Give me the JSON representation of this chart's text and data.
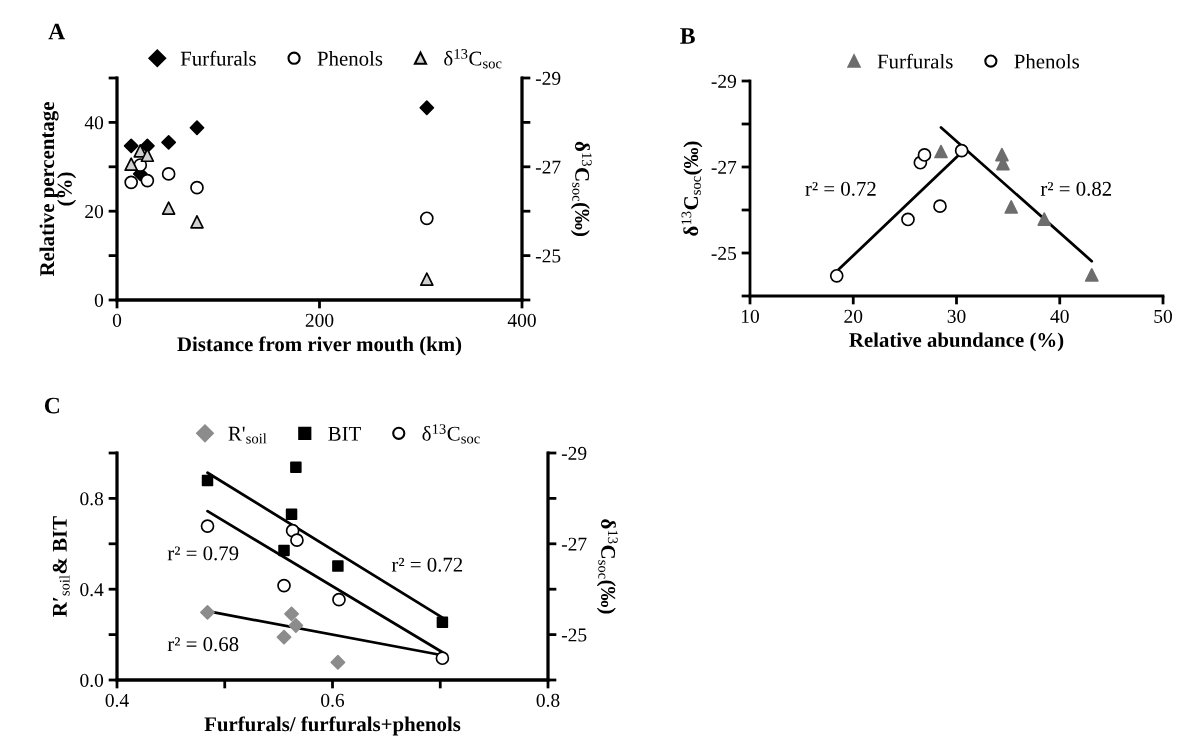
{
  "chart_data": [
    {
      "type": "scatter",
      "title": "A",
      "xlabel": "Distance from river mouth (km)",
      "ylabel": "Relative percentage\n(%)",
      "y2label": "δ$^{13}$C$_{soc}$(‰)",
      "xlim": [
        0,
        400
      ],
      "xticks": [
        0,
        200,
        400
      ],
      "ylim": [
        0,
        50
      ],
      "yticks": [
        0,
        {
          "value": 10,
          "label": null
        },
        20,
        {
          "value": 30,
          "label": null
        },
        40,
        {
          "value": 50,
          "label": null
        }
      ],
      "y2lim": [
        -24,
        -29
      ],
      "y2ticks": [
        {
          "value": -24,
          "label": null
        },
        -25,
        {
          "value": -26,
          "label": null
        },
        -27,
        {
          "value": -28,
          "label": null
        },
        -29
      ],
      "legend": "top",
      "grid": false,
      "series": [
        {
          "name": "Furfurals",
          "color": "#000000",
          "marker": "diamond",
          "x": [
            14,
            23,
            30,
            51,
            79,
            306
          ],
          "values": [
            34.7,
            28.4,
            34.7,
            35.5,
            38.8,
            43.3
          ]
        },
        {
          "name": "Phenols",
          "color": "#ffffff",
          "marker": "circle",
          "x": [
            14,
            23,
            30,
            51,
            79,
            306
          ],
          "values": [
            26.5,
            30.4,
            26.9,
            28.4,
            25.3,
            18.4
          ]
        },
        {
          "name": "δ$^{13}$C$_{soc}$",
          "color": "#d0d0d0",
          "marker": "triangle",
          "axis": "y2",
          "x": [
            14,
            23,
            30,
            51,
            79,
            306
          ],
          "values": [
            -27.06,
            -27.36,
            -27.26,
            -26.07,
            -25.76,
            -24.47
          ]
        }
      ]
    },
    {
      "type": "scatter",
      "title": "B",
      "xlabel": "Relative abundance (%)",
      "ylabel": "δ$^{13}$C$_{soc}$(‰)",
      "xlim": [
        10,
        50
      ],
      "xticks": [
        10,
        20,
        30,
        40,
        50
      ],
      "ylim": [
        -24,
        -29
      ],
      "yticks": [
        {
          "value": -24,
          "label": null
        },
        -25,
        {
          "value": -26,
          "label": null
        },
        -27,
        {
          "value": -28,
          "label": null
        },
        -29
      ],
      "legend": "top",
      "grid": false,
      "annotations": [
        "r² = 0.72",
        "r² = 0.82"
      ],
      "series": [
        {
          "name": "Furfurals",
          "color": "#6d6d6d",
          "marker": "triangle",
          "x": [
            28.5,
            34.4,
            34.5,
            35.3,
            38.5,
            43.1
          ],
          "values": [
            -27.36,
            -27.29,
            -27.08,
            -26.07,
            -25.79,
            -24.49
          ]
        },
        {
          "name": "Phenols",
          "color": "#ffffff",
          "marker": "circle",
          "x": [
            18.4,
            25.3,
            26.5,
            26.9,
            28.4,
            30.5
          ],
          "values": [
            -24.47,
            -25.78,
            -27.1,
            -27.28,
            -26.09,
            -27.38
          ]
        },
        {
          "type": "line",
          "color": "#000000",
          "marker": "none",
          "x": [
            18.6,
            30.4
          ],
          "values": [
            -24.62,
            -27.32
          ]
        },
        {
          "type": "line",
          "color": "#000000",
          "marker": "none",
          "x": [
            28.5,
            43.1
          ],
          "values": [
            -27.92,
            -24.81
          ]
        }
      ]
    },
    {
      "type": "scatter",
      "title": "C",
      "xlabel": "Furfurals/ furfurals+phenols",
      "ylabel": "R′$_{soil}$& BIT",
      "y2label": "δ$^{13}$C$_{soc}$(‰)",
      "xlim": [
        0.4,
        0.8
      ],
      "xticks": [
        0.4,
        {
          "value": 0.5,
          "label": null
        },
        0.6,
        {
          "value": 0.7,
          "label": null
        },
        0.8
      ],
      "ylim": [
        0,
        1
      ],
      "yticks": [
        {
          "value": 0,
          "label": "0.0"
        },
        {
          "value": 0.2,
          "label": null
        },
        0.4,
        {
          "value": 0.6,
          "label": null
        },
        0.8,
        {
          "value": 1,
          "label": null
        }
      ],
      "y2lim": [
        -24,
        -29
      ],
      "y2ticks": [
        {
          "value": -24,
          "label": null
        },
        -25,
        {
          "value": -26,
          "label": null
        },
        -27,
        {
          "value": -28,
          "label": null
        },
        -29
      ],
      "legend": "top",
      "grid": false,
      "annotations": [
        "r² = 0.79",
        "r² = 0.72",
        "r² = 0.68"
      ],
      "series": [
        {
          "name": "R'$_{soil}$",
          "color": "#8c8c8c",
          "marker": "diamond",
          "x": [
            0.484,
            0.562,
            0.566,
            0.555,
            0.605
          ],
          "values": [
            0.298,
            0.291,
            0.24,
            0.189,
            0.078
          ]
        },
        {
          "name": "BIT",
          "color": "#000000",
          "marker": "square",
          "x": [
            0.484,
            0.566,
            0.562,
            0.555,
            0.605,
            0.702
          ],
          "values": [
            0.879,
            0.937,
            0.73,
            0.571,
            0.502,
            0.254
          ]
        },
        {
          "name": "δ$^{13}$C$_{soc}$",
          "color": "#ffffff",
          "marker": "circle",
          "axis": "y2",
          "x": [
            0.484,
            0.563,
            0.567,
            0.555,
            0.606,
            0.702
          ],
          "values": [
            -27.39,
            -27.29,
            -27.08,
            -26.08,
            -25.77,
            -24.48
          ]
        },
        {
          "type": "line",
          "color": "#000000",
          "marker": "none",
          "x": [
            0.484,
            0.702
          ],
          "values": [
            0.913,
            0.275
          ]
        },
        {
          "type": "line",
          "color": "#000000",
          "marker": "none",
          "axis": "y2",
          "x": [
            0.484,
            0.702
          ],
          "values": [
            -27.72,
            -24.61
          ]
        },
        {
          "type": "line",
          "color": "#000000",
          "marker": "none",
          "x": [
            0.484,
            0.702
          ],
          "values": [
            0.303,
            0.109
          ]
        }
      ]
    }
  ]
}
